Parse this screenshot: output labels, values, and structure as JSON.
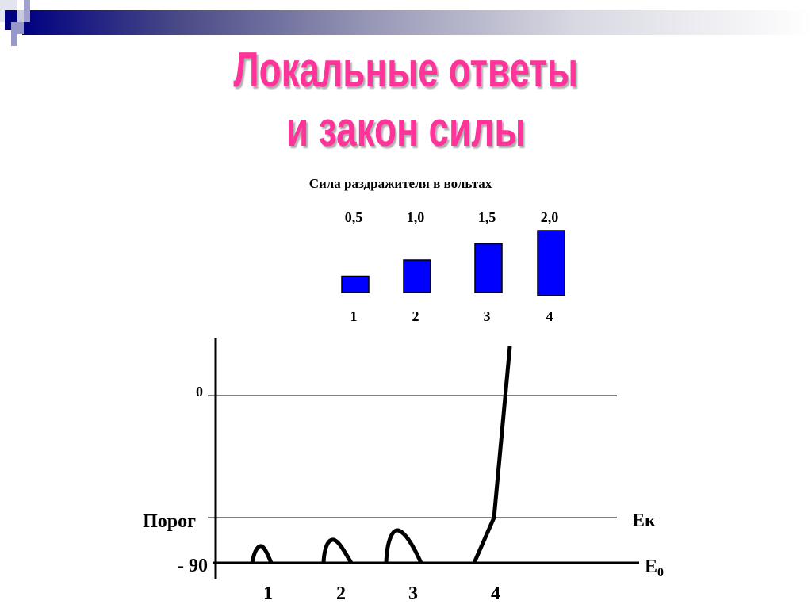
{
  "title": {
    "line1": "Локальные ответы",
    "line2": "и закон силы"
  },
  "stimulus": {
    "heading": "Сила раздражителя в вольтах",
    "voltages": [
      "0,5",
      "1,0",
      "1,5",
      "2,0"
    ],
    "numbers": [
      "1",
      "2",
      "3",
      "4"
    ],
    "bar_color": "#0000ff",
    "values": [
      0.5,
      1.0,
      1.5,
      2.0
    ]
  },
  "graph": {
    "zero_label": "0",
    "threshold_label": "Порог",
    "rest_label": "- 90",
    "ek_label": "Eк",
    "e0_label": "E",
    "e0_sub": "0",
    "response_numbers": [
      "1",
      "2",
      "3",
      "4"
    ]
  },
  "colors": {
    "title": "#ff3399",
    "header_band": "#000080"
  }
}
